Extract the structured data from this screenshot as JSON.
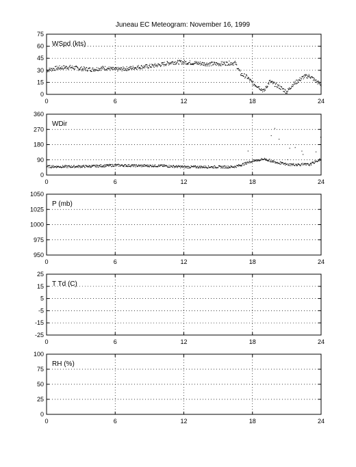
{
  "title": "Juneau EC Meteogram:  November 16, 1999",
  "chart_data": [
    {
      "type": "scatter",
      "panel_label": "WSpd (kts)",
      "xlim": [
        0,
        24
      ],
      "xticks": [
        0,
        6,
        12,
        18,
        24
      ],
      "ylim": [
        0,
        75
      ],
      "yticks": [
        0,
        15,
        30,
        45,
        60,
        75
      ],
      "grid": true,
      "trend": [
        [
          0,
          30
        ],
        [
          1,
          33
        ],
        [
          2,
          34
        ],
        [
          3,
          32
        ],
        [
          4,
          31
        ],
        [
          5,
          33
        ],
        [
          6,
          31
        ],
        [
          7,
          32
        ],
        [
          8,
          34
        ],
        [
          9,
          35
        ],
        [
          10,
          37
        ],
        [
          11,
          40
        ],
        [
          12,
          40
        ],
        [
          13,
          39
        ],
        [
          14,
          38
        ],
        [
          15,
          38
        ],
        [
          16,
          39
        ],
        [
          16.5,
          39
        ],
        [
          17,
          25
        ],
        [
          17.5,
          22
        ],
        [
          18,
          14
        ],
        [
          18.5,
          10
        ],
        [
          19,
          4
        ],
        [
          19.5,
          16
        ],
        [
          20,
          12
        ],
        [
          20.5,
          8
        ],
        [
          21,
          3
        ],
        [
          21.5,
          12
        ],
        [
          22,
          17
        ],
        [
          22.5,
          22
        ],
        [
          23,
          23
        ],
        [
          23.5,
          17
        ],
        [
          24,
          12
        ]
      ],
      "series": []
    },
    {
      "type": "scatter",
      "panel_label": "WDir",
      "xlim": [
        0,
        24
      ],
      "xticks": [
        0,
        6,
        12,
        18,
        24
      ],
      "ylim": [
        0,
        360
      ],
      "yticks": [
        0,
        90,
        180,
        270,
        360
      ],
      "grid": true,
      "trend": [
        [
          0,
          50
        ],
        [
          2,
          50
        ],
        [
          4,
          52
        ],
        [
          6,
          58
        ],
        [
          8,
          55
        ],
        [
          10,
          55
        ],
        [
          12,
          48
        ],
        [
          14,
          48
        ],
        [
          16,
          48
        ],
        [
          16.5,
          50
        ],
        [
          17,
          60
        ],
        [
          18,
          82
        ],
        [
          19,
          95
        ],
        [
          20,
          78
        ],
        [
          21,
          62
        ],
        [
          22,
          62
        ],
        [
          23,
          62
        ],
        [
          24,
          95
        ]
      ],
      "series": []
    },
    {
      "type": "scatter",
      "panel_label": "P (mb)",
      "xlim": [
        0,
        24
      ],
      "xticks": [
        0,
        6,
        12,
        18,
        24
      ],
      "ylim": [
        950,
        1050
      ],
      "yticks": [
        950,
        975,
        1000,
        1025,
        1050
      ],
      "grid": true,
      "series": []
    },
    {
      "type": "scatter",
      "panel_label": "T Td (C)",
      "xlim": [
        0,
        24
      ],
      "xticks": [
        0,
        6,
        12,
        18,
        24
      ],
      "ylim": [
        -25,
        25
      ],
      "yticks": [
        -25,
        -15,
        -5,
        5,
        15,
        25
      ],
      "grid": true,
      "series": []
    },
    {
      "type": "scatter",
      "panel_label": "RH (%)",
      "xlim": [
        0,
        24
      ],
      "xticks": [
        0,
        6,
        12,
        18,
        24
      ],
      "ylim": [
        0,
        100
      ],
      "yticks": [
        0,
        25,
        50,
        75,
        100
      ],
      "grid": true,
      "series": []
    }
  ]
}
